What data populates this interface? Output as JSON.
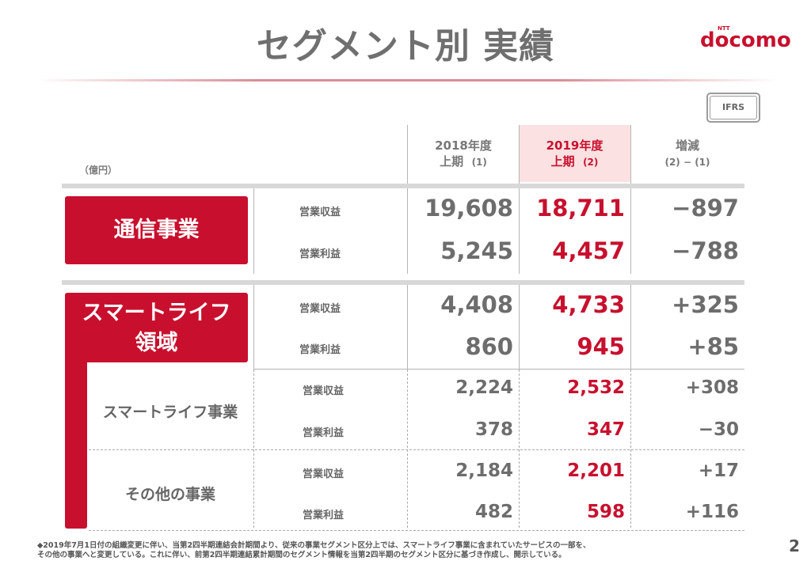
{
  "title": "セグメント別 実績",
  "logo": {
    "small": "NTT",
    "text": "docomo"
  },
  "badge": "IFRS",
  "unit": "（億円）",
  "headers": {
    "prev_year": "2018年度",
    "prev_half": "上期",
    "prev_ref": "(1)",
    "cur_year": "2019年度",
    "cur_half": "上期",
    "cur_ref": "(2)",
    "diff": "増減",
    "diff_formula": "(2) − (1)"
  },
  "segments": {
    "telecom": {
      "label": "通信事業",
      "rows": [
        {
          "metric": "営業収益",
          "prev": "19,608",
          "cur": "18,711",
          "diff": "−897"
        },
        {
          "metric": "営業利益",
          "prev": "5,245",
          "cur": "4,457",
          "diff": "−788"
        }
      ]
    },
    "smartlife_domain": {
      "label_line1": "スマートライフ",
      "label_line2": "領域",
      "rows": [
        {
          "metric": "営業収益",
          "prev": "4,408",
          "cur": "4,733",
          "diff": "+325"
        },
        {
          "metric": "営業利益",
          "prev": "860",
          "cur": "945",
          "diff": "+85"
        }
      ]
    },
    "smartlife_business": {
      "label": "スマートライフ事業",
      "rows": [
        {
          "metric": "営業収益",
          "prev": "2,224",
          "cur": "2,532",
          "diff": "+308"
        },
        {
          "metric": "営業利益",
          "prev": "378",
          "cur": "347",
          "diff": "−30"
        }
      ]
    },
    "other_business": {
      "label": "その他の事業",
      "rows": [
        {
          "metric": "営業収益",
          "prev": "2,184",
          "cur": "2,201",
          "diff": "+17"
        },
        {
          "metric": "営業利益",
          "prev": "482",
          "cur": "598",
          "diff": "+116"
        }
      ]
    }
  },
  "footnote": {
    "line1": "◆2019年7月1日付の組織変更に伴い、当第2四半期連結会計期間より、従来の事業セグメント区分上では、スマートライフ事業に含まれていたサービスの一部を、",
    "line2": "その他の事業へと変更している。これに伴い、前第2四半期連結累計期間のセグメント情報を当第2四半期のセグメント区分に基づき作成し、開示している。"
  },
  "page_number": "2",
  "colors": {
    "accent": "#c8102e",
    "highlight": "#fbe1e1",
    "text": "#6d6d6d"
  }
}
